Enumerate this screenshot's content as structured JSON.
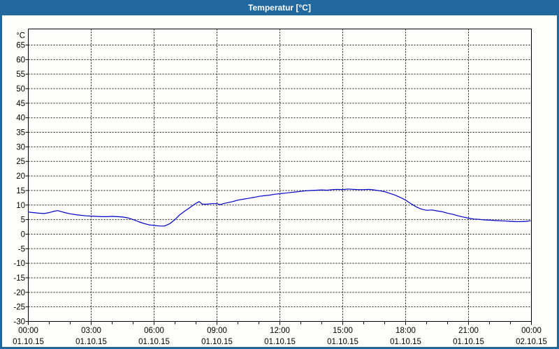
{
  "window": {
    "title": "Temperatur [°C]"
  },
  "colors": {
    "titlebar_bg": "#20689e",
    "titlebar_text": "#ffffff",
    "frame": "#20689e",
    "page_bg": "#fdfefa",
    "plot_bg": "#fefffc",
    "grid": "#1a1a1a",
    "axis": "#000000",
    "label": "#000000",
    "line": "#0000c8"
  },
  "chart_data": {
    "type": "line",
    "title": "Temperatur [°C]",
    "y_unit_label": "°C",
    "ylim": [
      -30,
      65
    ],
    "y_tick_step": 5,
    "xlim_hours": [
      0,
      24
    ],
    "x_major_step_hours": 3,
    "x_minor_step_hours": 1,
    "grid": "dashed",
    "legend": "none",
    "x_ticks": [
      {
        "hour": 0,
        "time": "00:00",
        "date": "01.10.15"
      },
      {
        "hour": 3,
        "time": "03:00",
        "date": "01.10.15"
      },
      {
        "hour": 6,
        "time": "06:00",
        "date": "01.10.15"
      },
      {
        "hour": 9,
        "time": "09:00",
        "date": "01.10.15"
      },
      {
        "hour": 12,
        "time": "12:00",
        "date": "01.10.15"
      },
      {
        "hour": 15,
        "time": "15:00",
        "date": "01.10.15"
      },
      {
        "hour": 18,
        "time": "18:00",
        "date": "01.10.15"
      },
      {
        "hour": 21,
        "time": "21:00",
        "date": "01.10.15"
      },
      {
        "hour": 24,
        "time": "00:00",
        "date": "02.10.15"
      }
    ],
    "series": [
      {
        "name": "Temperatur",
        "color": "#0000c8",
        "points": [
          [
            0,
            7.6
          ],
          [
            0.25,
            7.4
          ],
          [
            0.5,
            7.2
          ],
          [
            0.75,
            7.1
          ],
          [
            1,
            7.4
          ],
          [
            1.25,
            7.9
          ],
          [
            1.4,
            8.1
          ],
          [
            1.6,
            7.7
          ],
          [
            1.8,
            7.3
          ],
          [
            2,
            7.0
          ],
          [
            2.25,
            6.7
          ],
          [
            2.5,
            6.5
          ],
          [
            2.75,
            6.3
          ],
          [
            3,
            6.2
          ],
          [
            3.25,
            6.1
          ],
          [
            3.5,
            6.0
          ],
          [
            3.75,
            6.0
          ],
          [
            4,
            6.1
          ],
          [
            4.25,
            6.0
          ],
          [
            4.5,
            5.9
          ],
          [
            4.75,
            5.6
          ],
          [
            5,
            5.0
          ],
          [
            5.25,
            4.3
          ],
          [
            5.5,
            3.7
          ],
          [
            5.75,
            3.2
          ],
          [
            6,
            3.0
          ],
          [
            6.25,
            2.8
          ],
          [
            6.5,
            2.8
          ],
          [
            6.75,
            3.6
          ],
          [
            7,
            5.0
          ],
          [
            7.2,
            6.5
          ],
          [
            7.4,
            7.6
          ],
          [
            7.6,
            8.6
          ],
          [
            7.8,
            9.6
          ],
          [
            8,
            10.6
          ],
          [
            8.15,
            11.2
          ],
          [
            8.3,
            10.3
          ],
          [
            8.5,
            10.3
          ],
          [
            8.75,
            10.5
          ],
          [
            9,
            10.5
          ],
          [
            9.15,
            10.1
          ],
          [
            9.3,
            10.5
          ],
          [
            9.5,
            10.8
          ],
          [
            9.75,
            11.2
          ],
          [
            10,
            11.7
          ],
          [
            10.25,
            12.0
          ],
          [
            10.5,
            12.3
          ],
          [
            10.75,
            12.6
          ],
          [
            11,
            13.0
          ],
          [
            11.25,
            13.2
          ],
          [
            11.5,
            13.4
          ],
          [
            11.75,
            13.7
          ],
          [
            12,
            13.9
          ],
          [
            12.25,
            14.1
          ],
          [
            12.5,
            14.3
          ],
          [
            12.75,
            14.5
          ],
          [
            13,
            14.7
          ],
          [
            13.25,
            14.9
          ],
          [
            13.5,
            15.0
          ],
          [
            13.75,
            15.1
          ],
          [
            14,
            15.2
          ],
          [
            14.25,
            15.1
          ],
          [
            14.5,
            15.3
          ],
          [
            14.75,
            15.4
          ],
          [
            15,
            15.3
          ],
          [
            15.25,
            15.5
          ],
          [
            15.5,
            15.4
          ],
          [
            15.75,
            15.3
          ],
          [
            16,
            15.3
          ],
          [
            16.25,
            15.4
          ],
          [
            16.5,
            15.2
          ],
          [
            16.75,
            14.9
          ],
          [
            17,
            14.6
          ],
          [
            17.25,
            14.0
          ],
          [
            17.5,
            13.4
          ],
          [
            17.75,
            12.6
          ],
          [
            18,
            11.7
          ],
          [
            18.25,
            10.5
          ],
          [
            18.5,
            9.4
          ],
          [
            18.75,
            8.6
          ],
          [
            19,
            8.2
          ],
          [
            19.25,
            8.3
          ],
          [
            19.5,
            8.0
          ],
          [
            19.75,
            7.7
          ],
          [
            20,
            7.2
          ],
          [
            20.25,
            6.8
          ],
          [
            20.5,
            6.3
          ],
          [
            20.75,
            5.9
          ],
          [
            21,
            5.5
          ],
          [
            21.25,
            5.2
          ],
          [
            21.5,
            5.1
          ],
          [
            21.75,
            4.9
          ],
          [
            22,
            4.8
          ],
          [
            22.25,
            4.7
          ],
          [
            22.5,
            4.6
          ],
          [
            22.75,
            4.5
          ],
          [
            23,
            4.4
          ],
          [
            23.25,
            4.3
          ],
          [
            23.5,
            4.3
          ],
          [
            23.75,
            4.4
          ],
          [
            23.95,
            4.6
          ]
        ]
      }
    ]
  }
}
